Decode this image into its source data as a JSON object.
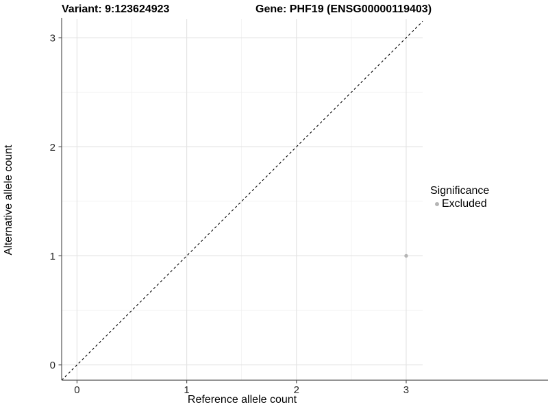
{
  "figure": {
    "title_variant": "Variant: 9:123624923",
    "title_gene": "Gene: PHF19 (ENSG00000119403)"
  },
  "chart_data": {
    "type": "scatter",
    "title": "Variant: 9:123624923 / Gene: PHF19 (ENSG00000119403)",
    "xlabel": "Reference allele count",
    "ylabel": "Alternative allele count",
    "x_ticks": [
      0,
      1,
      2,
      3
    ],
    "y_ticks": [
      0,
      1,
      2,
      3
    ],
    "xlim": [
      -0.14,
      3.15
    ],
    "ylim": [
      -0.14,
      3.17
    ],
    "grid": true,
    "minor_grid_step": 0.5,
    "identity_line": {
      "style": "dashed",
      "slope": 1,
      "intercept": 0
    },
    "series": [
      {
        "name": "Excluded",
        "points": [
          {
            "x": 3,
            "y": 1
          }
        ]
      }
    ],
    "legend": {
      "title": "Significance",
      "position": "right",
      "items": [
        {
          "label": "Excluded",
          "color": "#b5b5b5"
        }
      ]
    },
    "colors": {
      "point": "#b5b5b5",
      "grid_major": "#e4e4e4",
      "grid_minor": "#efefef",
      "axis_line": "#555555",
      "tick_mark": "#555555",
      "tick_text": "#262626",
      "identity_line": "#000000",
      "background": "#ffffff"
    }
  }
}
